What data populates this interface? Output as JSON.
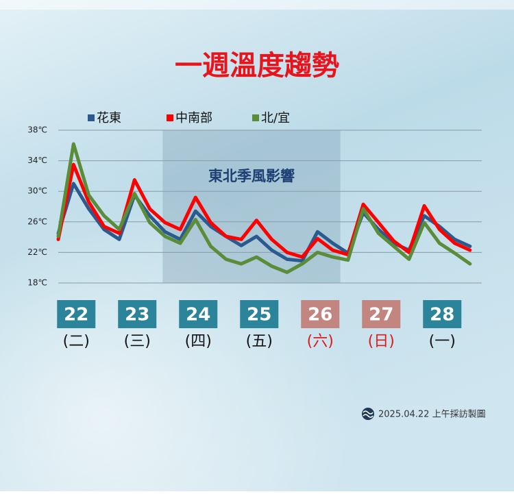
{
  "chart_data": {
    "type": "line",
    "title": "一週溫度趨勢",
    "categories": [
      null,
      "22",
      null,
      null,
      null,
      "23",
      null,
      null,
      null,
      "24",
      null,
      null,
      null,
      "25",
      null,
      null,
      null,
      "26",
      null,
      null,
      null,
      "27",
      null,
      null,
      null,
      "28",
      null,
      null
    ],
    "weekdays": [
      null,
      "(二)",
      null,
      null,
      null,
      "(三)",
      null,
      null,
      null,
      "(四)",
      null,
      null,
      null,
      "(五)",
      null,
      null,
      null,
      "(六)",
      null,
      null,
      null,
      "(日)",
      null,
      null,
      null,
      "(一)",
      null,
      null
    ],
    "highlight": [
      "26",
      "27"
    ],
    "series": [
      {
        "name": "花東",
        "color": "#2b5b8e",
        "values": [
          24.5,
          31,
          27.7,
          25,
          23.7,
          29.5,
          26.8,
          24.7,
          23.7,
          27.4,
          25.4,
          24.1,
          22.9,
          24.1,
          22.3,
          21.1,
          20.9,
          24.7,
          23.2,
          21.9,
          27.2,
          25,
          23.2,
          22.3,
          26.8,
          25.4,
          23.7,
          22.8
        ]
      },
      {
        "name": "中南部",
        "color": "#ff0000",
        "values": [
          23.7,
          33.5,
          28.6,
          25.4,
          24.5,
          31.5,
          27.7,
          25.9,
          25,
          29.2,
          25.9,
          24.1,
          23.7,
          26.2,
          23.7,
          22,
          21.4,
          23.8,
          22.3,
          21.7,
          28.3,
          25.9,
          23.5,
          22,
          28.1,
          25,
          23.2,
          22.3
        ]
      },
      {
        "name": "北/宜",
        "color": "#5b8c3a",
        "values": [
          24.1,
          36.2,
          29.5,
          26.8,
          25,
          29.7,
          25.9,
          24.1,
          23.2,
          26.3,
          22.8,
          21.1,
          20.5,
          21.4,
          20.2,
          19.4,
          20.5,
          22,
          21.4,
          21,
          27.7,
          24.5,
          22.8,
          21.1,
          25.9,
          23.2,
          21.9,
          20.5
        ]
      }
    ],
    "ylim": [
      18,
      38
    ],
    "yticks": [
      {
        "value": 18,
        "label": "18℃"
      },
      {
        "value": 22,
        "label": "22℃"
      },
      {
        "value": 26,
        "label": "26℃"
      },
      {
        "value": 30,
        "label": "30℃"
      },
      {
        "value": 34,
        "label": "34℃"
      },
      {
        "value": 38,
        "label": "38℃"
      }
    ],
    "grid": true,
    "legend": "top",
    "shade": {
      "label": "東北季風影響",
      "from": "24",
      "to": "26"
    },
    "footer": "2025.04.22 上午採訪製圖"
  }
}
